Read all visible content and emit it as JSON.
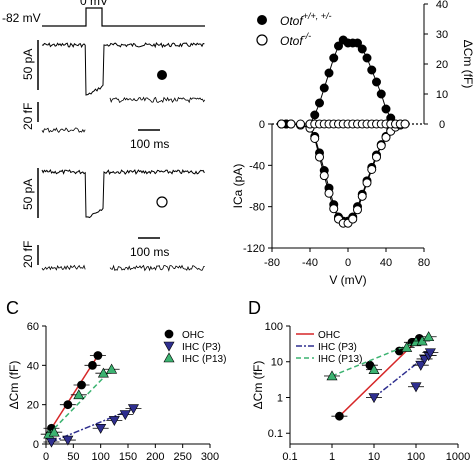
{
  "figure": {
    "panelA": {
      "protocol": {
        "hold_label": "-82 mV",
        "step_label": "0 mV"
      },
      "scale_current": "50 pA",
      "scale_cap": "20 fF",
      "scale_time": "100 ms",
      "trace1_marker": "filled",
      "trace2_marker": "open"
    },
    "panelB": {
      "legend": [
        {
          "label": "Otof",
          "sup": "+/+, +/-",
          "marker": "filled"
        },
        {
          "label": "Otof",
          "sup": "-/-",
          "marker": "open"
        }
      ]
    },
    "panelC": {
      "letter": "C"
    },
    "panelD": {
      "letter": "D"
    }
  },
  "chart_data": [
    {
      "type": "line",
      "panel": "B-IV",
      "xlabel": "V (mV)",
      "ylabel": "ICa (pA)",
      "xlim": [
        -80,
        80
      ],
      "ylim": [
        -120,
        0
      ],
      "xticks": [
        -80,
        -40,
        0,
        40,
        80
      ],
      "yticks": [
        -120,
        -80,
        -40,
        0
      ],
      "series": [
        {
          "marker": "filled",
          "x": [
            -70,
            -65,
            -60,
            -50,
            -40,
            -35,
            -30,
            -25,
            -20,
            -15,
            -10,
            -5,
            0,
            5,
            10,
            15,
            20,
            25,
            30,
            35,
            40,
            45,
            50,
            55,
            60
          ],
          "y": [
            0,
            0,
            0,
            -1,
            -3,
            -12,
            -28,
            -45,
            -62,
            -78,
            -90,
            -94,
            -94,
            -90,
            -80,
            -68,
            -55,
            -42,
            -30,
            -20,
            -12,
            -6,
            -2,
            -1,
            0
          ]
        },
        {
          "marker": "open",
          "x": [
            -70,
            -65,
            -60,
            -50,
            -40,
            -35,
            -30,
            -25,
            -20,
            -15,
            -10,
            -5,
            0,
            5,
            10,
            15,
            20,
            25,
            30,
            35,
            40,
            45,
            50,
            55,
            60
          ],
          "y": [
            0,
            0,
            0,
            -1,
            -4,
            -14,
            -32,
            -50,
            -67,
            -82,
            -92,
            -96,
            -96,
            -92,
            -83,
            -70,
            -57,
            -44,
            -32,
            -21,
            -13,
            -7,
            -3,
            -1,
            0
          ]
        }
      ]
    },
    {
      "type": "line",
      "panel": "B-Cm",
      "ylabel": "ΔCm (fF)",
      "ylim": [
        0,
        40
      ],
      "yticks": [
        0,
        10,
        20,
        30,
        40
      ],
      "series": [
        {
          "marker": "filled",
          "x": [
            -70,
            -65,
            -40,
            -35,
            -30,
            -25,
            -20,
            -15,
            -10,
            -5,
            0,
            5,
            10,
            15,
            20,
            25,
            30,
            35,
            40,
            45,
            50,
            55
          ],
          "y": [
            0,
            0,
            0,
            3,
            7,
            12,
            17,
            22,
            26,
            28,
            27,
            27,
            27,
            25,
            22,
            18,
            14,
            10,
            5,
            2,
            0,
            0
          ]
        },
        {
          "marker": "open",
          "x": [
            -70,
            -60,
            -50,
            -40,
            -35,
            -30,
            -25,
            -20,
            -15,
            -10,
            -5,
            0,
            5,
            10,
            15,
            20,
            25,
            30,
            35,
            40,
            45,
            50,
            55,
            60
          ],
          "y": [
            0,
            0,
            0,
            0,
            0,
            0,
            0,
            0,
            0,
            0,
            0,
            0,
            0,
            0,
            0,
            0,
            0,
            0,
            0,
            0,
            0,
            0,
            0,
            0
          ]
        }
      ]
    },
    {
      "type": "scatter",
      "panel": "C",
      "ylabel": "ΔCm (fF)",
      "xlim": [
        0,
        300
      ],
      "ylim": [
        0,
        60
      ],
      "xticks": [
        0,
        50,
        100,
        150,
        200,
        250,
        300
      ],
      "yticks": [
        0,
        20,
        40,
        60
      ],
      "legend": [
        "OHC",
        "IHC (P3)",
        "IHC (P13)"
      ],
      "series": [
        {
          "name": "OHC",
          "color": "#000000",
          "marker": "circle",
          "x": [
            10,
            40,
            65,
            85,
            95
          ],
          "y": [
            8,
            20,
            30,
            40,
            45
          ],
          "line_color": "#d62728"
        },
        {
          "name": "IHC (P3)",
          "color": "#2f2f8f",
          "marker": "triangle-down",
          "x": [
            10,
            40,
            100,
            125,
            145,
            160
          ],
          "y": [
            1,
            2,
            8,
            12,
            15,
            18
          ],
          "line_color": "#2f2f8f"
        },
        {
          "name": "IHC (P13)",
          "color": "#3cb371",
          "marker": "triangle-up",
          "x": [
            5,
            15,
            60,
            105,
            120
          ],
          "y": [
            5,
            6,
            25,
            36,
            38
          ],
          "line_color": "#3cb371"
        }
      ]
    },
    {
      "type": "scatter",
      "panel": "D",
      "ylabel": "ΔCm (fF)",
      "xscale": "log",
      "yscale": "log",
      "xlim": [
        0.1,
        1000
      ],
      "ylim": [
        0.05,
        100
      ],
      "xticks": [
        0.1,
        1,
        10,
        100,
        1000
      ],
      "yticks": [
        0.1,
        1,
        10,
        100
      ],
      "legend": [
        "OHC",
        "IHC (P3)",
        "IHC (P13)"
      ],
      "series": [
        {
          "name": "OHC",
          "color": "#000000",
          "marker": "circle",
          "x": [
            1.5,
            8,
            40,
            80,
            120
          ],
          "y": [
            0.3,
            8,
            20,
            35,
            45
          ],
          "line_color": "#d62728"
        },
        {
          "name": "IHC (P3)",
          "color": "#2f2f8f",
          "marker": "triangle-down",
          "x": [
            10,
            100,
            130,
            160,
            200,
            220
          ],
          "y": [
            1,
            2,
            8,
            12,
            15,
            18
          ],
          "line_color": "#2f2f8f"
        },
        {
          "name": "IHC (P13)",
          "color": "#3cb371",
          "marker": "triangle-up",
          "x": [
            1,
            10,
            60,
            100,
            140,
            200
          ],
          "y": [
            4,
            6,
            25,
            36,
            38,
            50
          ],
          "line_color": "#3cb371"
        }
      ]
    }
  ]
}
